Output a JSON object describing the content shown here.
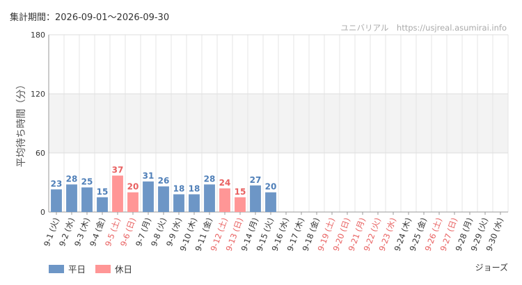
{
  "header": {
    "period": "集計期間：2026-09-01～2026-09-30",
    "credit": "ユニバリアル　https://usjreal.asumirai.info",
    "attraction": "ジョーズ"
  },
  "legend": [
    {
      "label": "平日",
      "color": "#6d96c6"
    },
    {
      "label": "休日",
      "color": "#ff9696"
    }
  ],
  "colors": {
    "weekday": "#6d96c6",
    "holiday": "#ff9696",
    "weekday_label": "#4f7fb8",
    "holiday_label": "#e86060",
    "band": "#f3f3f3"
  },
  "chart_data": {
    "type": "bar",
    "ylabel": "平均待ち時間（分）",
    "ylim": [
      0,
      180
    ],
    "yticks": [
      "0",
      "60",
      "120",
      "180"
    ],
    "shaded_band": [
      60,
      120
    ],
    "grid": true,
    "legend_position": "bottom-left",
    "categories": [
      "9-1 (火)",
      "9-2 (水)",
      "9-3 (木)",
      "9-4 (金)",
      "9-5 (土)",
      "9-6 (日)",
      "9-7 (月)",
      "9-8 (火)",
      "9-9 (水)",
      "9-10 (木)",
      "9-11 (金)",
      "9-12 (土)",
      "9-13 (日)",
      "9-14 (月)",
      "9-15 (火)",
      "9-16 (水)",
      "9-17 (木)",
      "9-18 (金)",
      "9-19 (土)",
      "9-20 (日)",
      "9-21 (月)",
      "9-22 (火)",
      "9-23 (水)",
      "9-24 (木)",
      "9-25 (金)",
      "9-26 (土)",
      "9-27 (日)",
      "9-28 (月)",
      "9-29 (火)",
      "9-30 (水)"
    ],
    "holiday_flags": [
      false,
      false,
      false,
      false,
      true,
      true,
      false,
      false,
      false,
      false,
      false,
      true,
      true,
      false,
      false,
      false,
      false,
      false,
      true,
      true,
      true,
      true,
      true,
      false,
      false,
      true,
      true,
      false,
      false,
      false
    ],
    "values": [
      23,
      28,
      25,
      15,
      37,
      20,
      31,
      26,
      18,
      18,
      28,
      24,
      15,
      27,
      20,
      null,
      null,
      null,
      null,
      null,
      null,
      null,
      null,
      null,
      null,
      null,
      null,
      null,
      null,
      null
    ]
  }
}
